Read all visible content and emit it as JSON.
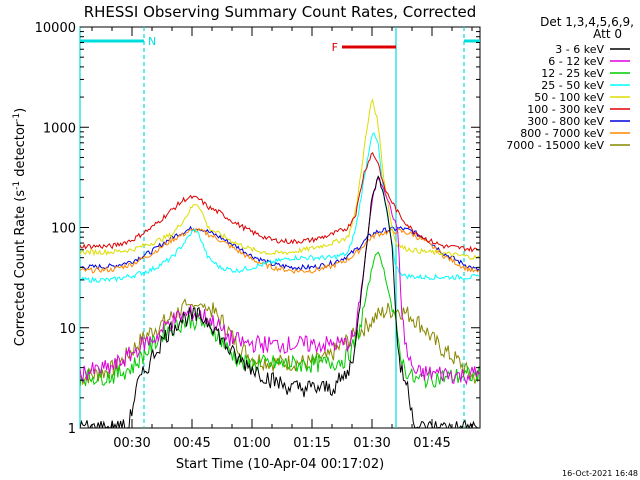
{
  "chart_data": {
    "type": "line",
    "title": "RHESSI Observing Summary Count Rates, Corrected",
    "xlabel": "Start Time (10-Apr-04 00:17:02)",
    "ylabel_main": "Corrected Count Rate (s",
    "ylabel_sup1": "-1",
    "ylabel_mid": " detector",
    "ylabel_sup2": "-1",
    "ylabel_end": ")",
    "yscale": "log",
    "ylim": [
      1,
      10000
    ],
    "xlim_min": [
      17,
      117
    ],
    "x_ticks": [
      {
        "min": 30,
        "label": "00:30"
      },
      {
        "min": 45,
        "label": "00:45"
      },
      {
        "min": 60,
        "label": "01:00"
      },
      {
        "min": 75,
        "label": "01:15"
      },
      {
        "min": 90,
        "label": "01:30"
      },
      {
        "min": 105,
        "label": "01:45"
      }
    ],
    "y_ticks": [
      {
        "v": 1,
        "label": "1"
      },
      {
        "v": 10,
        "label": "10"
      },
      {
        "v": 100,
        "label": "100"
      },
      {
        "v": 1000,
        "label": "1000"
      },
      {
        "v": 10000,
        "label": "10000"
      }
    ],
    "legend_header": [
      "Det 1,3,4,5,6,9,",
      "Att 0"
    ],
    "legend_position": "right",
    "series": [
      {
        "name": "3 - 6 keV",
        "color": "#000000",
        "points": [
          [
            17,
            1
          ],
          [
            29,
            1
          ],
          [
            30,
            1.5
          ],
          [
            31,
            2.5
          ],
          [
            33,
            3.5
          ],
          [
            36,
            6
          ],
          [
            39,
            9
          ],
          [
            42,
            12
          ],
          [
            45,
            13
          ],
          [
            47,
            13
          ],
          [
            50,
            11
          ],
          [
            53,
            7
          ],
          [
            56,
            5
          ],
          [
            60,
            4
          ],
          [
            65,
            3
          ],
          [
            70,
            2.5
          ],
          [
            75,
            2.5
          ],
          [
            80,
            2.5
          ],
          [
            84,
            3.5
          ],
          [
            86,
            7
          ],
          [
            88,
            40
          ],
          [
            90,
            200
          ],
          [
            91.5,
            320
          ],
          [
            93,
            220
          ],
          [
            95,
            70
          ],
          [
            96,
            12
          ],
          [
            97,
            4
          ],
          [
            99,
            2.5
          ],
          [
            100,
            1.5
          ],
          [
            101,
            1
          ]
        ]
      },
      {
        "name": "6 - 12 keV",
        "color": "#dd00dd",
        "points": [
          [
            17,
            3.5
          ],
          [
            25,
            4
          ],
          [
            30,
            5.5
          ],
          [
            33,
            7
          ],
          [
            36,
            8
          ],
          [
            39,
            11
          ],
          [
            42,
            13
          ],
          [
            45,
            14
          ],
          [
            48,
            13
          ],
          [
            51,
            11
          ],
          [
            54,
            8
          ],
          [
            58,
            7
          ],
          [
            65,
            6.8
          ],
          [
            72,
            6.8
          ],
          [
            79,
            6.8
          ],
          [
            84,
            7
          ],
          [
            86,
            9
          ],
          [
            88,
            40
          ],
          [
            90,
            180
          ],
          [
            91.5,
            320
          ],
          [
            93,
            250
          ],
          [
            95,
            140
          ],
          [
            96.5,
            90
          ],
          [
            97.5,
            12
          ],
          [
            99,
            5
          ],
          [
            101,
            3.5
          ],
          [
            104,
            3.5
          ],
          [
            108,
            3.5
          ],
          [
            112,
            3.3
          ],
          [
            116,
            3.5
          ]
        ]
      },
      {
        "name": "12 - 25 keV",
        "color": "#00cc00",
        "points": [
          [
            17,
            3.2
          ],
          [
            25,
            3.3
          ],
          [
            30,
            4
          ],
          [
            34,
            6
          ],
          [
            38,
            9
          ],
          [
            42,
            11
          ],
          [
            45,
            12
          ],
          [
            48,
            11
          ],
          [
            51,
            9
          ],
          [
            54,
            6
          ],
          [
            58,
            4.3
          ],
          [
            65,
            4.4
          ],
          [
            72,
            4.3
          ],
          [
            79,
            4.4
          ],
          [
            83,
            4.8
          ],
          [
            85,
            6
          ],
          [
            87,
            10
          ],
          [
            89,
            25
          ],
          [
            91,
            60
          ],
          [
            92.5,
            45
          ],
          [
            94,
            25
          ],
          [
            96,
            10
          ],
          [
            97,
            6
          ],
          [
            98,
            4
          ],
          [
            100,
            3.2
          ],
          [
            101,
            3
          ],
          [
            107,
            3.2
          ],
          [
            113,
            3.3
          ],
          [
            116,
            3.4
          ]
        ]
      },
      {
        "name": "25 - 50 keV",
        "color": "#00ffff",
        "points": [
          [
            17,
            30
          ],
          [
            25,
            30
          ],
          [
            30,
            33
          ],
          [
            35,
            38
          ],
          [
            40,
            50
          ],
          [
            43,
            70
          ],
          [
            45,
            90
          ],
          [
            46,
            95
          ],
          [
            47,
            80
          ],
          [
            49,
            50
          ],
          [
            52,
            40
          ],
          [
            56,
            37
          ],
          [
            60,
            40
          ],
          [
            65,
            45
          ],
          [
            70,
            50
          ],
          [
            75,
            50
          ],
          [
            80,
            50
          ],
          [
            84,
            55
          ],
          [
            86,
            100
          ],
          [
            88,
            300
          ],
          [
            90,
            900
          ],
          [
            91.5,
            700
          ],
          [
            93,
            200
          ],
          [
            95,
            70
          ],
          [
            96,
            40
          ],
          [
            98,
            33
          ],
          [
            102,
            32
          ],
          [
            108,
            32
          ],
          [
            113,
            32
          ],
          [
            116,
            32
          ]
        ]
      },
      {
        "name": "50 - 100 keV",
        "color": "#dddd00",
        "points": [
          [
            17,
            57
          ],
          [
            25,
            57
          ],
          [
            30,
            60
          ],
          [
            35,
            70
          ],
          [
            40,
            85
          ],
          [
            43,
            120
          ],
          [
            45,
            160
          ],
          [
            46,
            175
          ],
          [
            47,
            160
          ],
          [
            49,
            100
          ],
          [
            52,
            85
          ],
          [
            56,
            70
          ],
          [
            60,
            60
          ],
          [
            65,
            55
          ],
          [
            70,
            57
          ],
          [
            75,
            62
          ],
          [
            80,
            70
          ],
          [
            84,
            80
          ],
          [
            86,
            150
          ],
          [
            88,
            600
          ],
          [
            90,
            2000
          ],
          [
            91.5,
            1100
          ],
          [
            93,
            300
          ],
          [
            95,
            100
          ],
          [
            96,
            70
          ],
          [
            98,
            62
          ],
          [
            102,
            58
          ],
          [
            108,
            55
          ],
          [
            113,
            52
          ],
          [
            116,
            50
          ]
        ]
      },
      {
        "name": "100 - 300 keV",
        "color": "#dd0000",
        "points": [
          [
            17,
            65
          ],
          [
            25,
            65
          ],
          [
            30,
            75
          ],
          [
            35,
            100
          ],
          [
            40,
            150
          ],
          [
            43,
            190
          ],
          [
            45,
            200
          ],
          [
            47,
            190
          ],
          [
            49,
            160
          ],
          [
            52,
            140
          ],
          [
            56,
            110
          ],
          [
            60,
            90
          ],
          [
            65,
            75
          ],
          [
            70,
            72
          ],
          [
            75,
            75
          ],
          [
            80,
            85
          ],
          [
            84,
            100
          ],
          [
            86,
            140
          ],
          [
            88,
            350
          ],
          [
            90,
            560
          ],
          [
            91.5,
            450
          ],
          [
            93,
            250
          ],
          [
            95,
            180
          ],
          [
            97,
            130
          ],
          [
            100,
            95
          ],
          [
            104,
            75
          ],
          [
            108,
            65
          ],
          [
            113,
            62
          ],
          [
            116,
            60
          ]
        ]
      },
      {
        "name": "300 - 800 keV",
        "color": "#0000dd",
        "points": [
          [
            17,
            40
          ],
          [
            25,
            41
          ],
          [
            30,
            46
          ],
          [
            35,
            58
          ],
          [
            40,
            80
          ],
          [
            44,
            95
          ],
          [
            46,
            100
          ],
          [
            48,
            95
          ],
          [
            52,
            80
          ],
          [
            56,
            65
          ],
          [
            60,
            52
          ],
          [
            65,
            43
          ],
          [
            70,
            40
          ],
          [
            75,
            40
          ],
          [
            80,
            44
          ],
          [
            84,
            52
          ],
          [
            87,
            65
          ],
          [
            89,
            80
          ],
          [
            91,
            90
          ],
          [
            94,
            95
          ],
          [
            97,
            98
          ],
          [
            100,
            92
          ],
          [
            104,
            75
          ],
          [
            108,
            55
          ],
          [
            113,
            43
          ],
          [
            116,
            38
          ]
        ]
      },
      {
        "name": "800 - 7000 keV",
        "color": "#ff8800",
        "points": [
          [
            17,
            37
          ],
          [
            25,
            38
          ],
          [
            30,
            43
          ],
          [
            35,
            55
          ],
          [
            40,
            75
          ],
          [
            44,
            90
          ],
          [
            46,
            95
          ],
          [
            48,
            90
          ],
          [
            52,
            75
          ],
          [
            56,
            60
          ],
          [
            60,
            48
          ],
          [
            65,
            40
          ],
          [
            70,
            37
          ],
          [
            75,
            37
          ],
          [
            80,
            41
          ],
          [
            84,
            48
          ],
          [
            87,
            60
          ],
          [
            89,
            75
          ],
          [
            91,
            85
          ],
          [
            94,
            90
          ],
          [
            97,
            92
          ],
          [
            100,
            86
          ],
          [
            104,
            70
          ],
          [
            108,
            52
          ],
          [
            113,
            40
          ],
          [
            116,
            36
          ]
        ]
      },
      {
        "name": "7000 - 15000 keV",
        "color": "#888800",
        "points": [
          [
            17,
            3.2
          ],
          [
            22,
            3.5
          ],
          [
            26,
            4
          ],
          [
            30,
            6
          ],
          [
            33,
            8
          ],
          [
            36,
            10
          ],
          [
            39,
            12
          ],
          [
            42,
            15
          ],
          [
            45,
            17
          ],
          [
            47,
            17
          ],
          [
            50,
            15
          ],
          [
            53,
            11
          ],
          [
            56,
            7
          ],
          [
            60,
            5
          ],
          [
            65,
            4.5
          ],
          [
            70,
            4.5
          ],
          [
            75,
            4.5
          ],
          [
            79,
            5
          ],
          [
            82,
            6.5
          ],
          [
            85,
            8
          ],
          [
            88,
            10
          ],
          [
            91,
            13
          ],
          [
            94,
            15
          ],
          [
            97,
            15
          ],
          [
            100,
            13
          ],
          [
            103,
            10
          ],
          [
            106,
            7
          ],
          [
            109,
            5.5
          ],
          [
            112,
            4.5
          ],
          [
            114,
            3.5
          ],
          [
            116,
            3.2
          ]
        ]
      }
    ],
    "bars": [
      {
        "label": "N",
        "color": "#00dddd",
        "x0": 17,
        "x1": 33
      },
      {
        "label": "",
        "color": "#00dddd",
        "x0": 113,
        "x1": 117
      },
      {
        "label": "F",
        "color": "#dd0000",
        "x0": 82.5,
        "x1": 96
      }
    ],
    "vlines": [
      {
        "x": 17,
        "color": "#00dddd",
        "style": "solid"
      },
      {
        "x": 33,
        "color": "#00dddd",
        "style": "dashed"
      },
      {
        "x": 96,
        "color": "#00dddd",
        "style": "solid"
      },
      {
        "x": 113,
        "color": "#00dddd",
        "style": "dashed"
      }
    ],
    "footer": "16-Oct-2021 16:48"
  }
}
